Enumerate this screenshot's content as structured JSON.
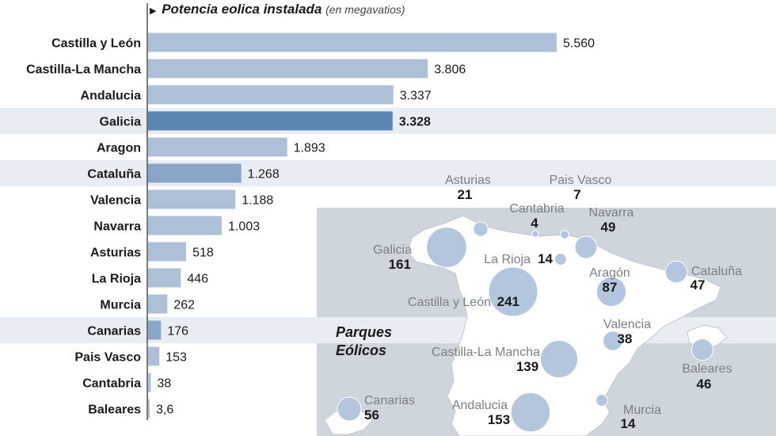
{
  "title": "Potencia eolica instalada",
  "subtitle": "(en megavatios)",
  "colors": {
    "bar": "#adc0d8",
    "bar_highlight": "#5b86b2",
    "bar_medium": "#8aa6c7",
    "band": "#e8edf4",
    "map_land": "#ffffff",
    "map_bg": "#cfd5dc",
    "bubble": "#b3c6de"
  },
  "chart_data": [
    {
      "type": "bar",
      "orientation": "horizontal",
      "categories": [
        "Castilla y León",
        "Castilla-La Mancha",
        "Andalucia",
        "Galicia",
        "Aragon",
        "Cataluña",
        "Valencia",
        "Navarra",
        "Asturias",
        "La Rioja",
        "Murcia",
        "Canarias",
        "Pais Vasco",
        "Cantabria",
        "Baleares"
      ],
      "values": [
        5560,
        3806,
        3337,
        3328,
        1893,
        1268,
        1188,
        1003,
        518,
        446,
        262,
        176,
        153,
        38,
        3.6
      ],
      "value_labels": [
        "5.560",
        "3.806",
        "3.337",
        "3.328",
        "1.893",
        "1.268",
        "1.188",
        "1.003",
        "518",
        "446",
        "262",
        "176",
        "153",
        "38",
        "3,6"
      ],
      "highlight": [
        "Galicia"
      ],
      "medium": [
        "Cataluña",
        "Canarias"
      ],
      "banded_rows": [
        "Galicia",
        "Cataluña",
        "Canarias"
      ],
      "title": "Potencia eolica instalada",
      "subtitle": "(en megavatios)",
      "xlim": [
        0,
        5560
      ]
    },
    {
      "type": "bubble-map",
      "title": "Parques Eólicos",
      "points": [
        {
          "region": "Asturias",
          "label": "Asturias",
          "value": 21
        },
        {
          "region": "Pais Vasco",
          "label": "Pais Vasco",
          "value": 7
        },
        {
          "region": "Cantabria",
          "label": "Cantabria",
          "value": 4
        },
        {
          "region": "Navarra",
          "label": "Navarra",
          "value": 49
        },
        {
          "region": "Galicia",
          "label": "Galicia",
          "value": 161
        },
        {
          "region": "La Rioja",
          "label": "La Rioja",
          "value": 14
        },
        {
          "region": "Aragón",
          "label": "Aragón",
          "value": 87
        },
        {
          "region": "Cataluña",
          "label": "Cataluña",
          "value": 47
        },
        {
          "region": "Castilla y León",
          "label": "Castilla y León",
          "value": 241
        },
        {
          "region": "Valencia",
          "label": "Valencia",
          "value": 38
        },
        {
          "region": "Castilla-La Mancha",
          "label": "Castilla-La Mancha",
          "value": 139
        },
        {
          "region": "Baleares",
          "label": "Baleares",
          "value": 46
        },
        {
          "region": "Canarias",
          "label": "Canarias",
          "value": 56
        },
        {
          "region": "Andalucia",
          "label": "Andalucia",
          "value": 153
        },
        {
          "region": "Murcia",
          "label": "Murcia",
          "value": 14
        }
      ]
    }
  ]
}
